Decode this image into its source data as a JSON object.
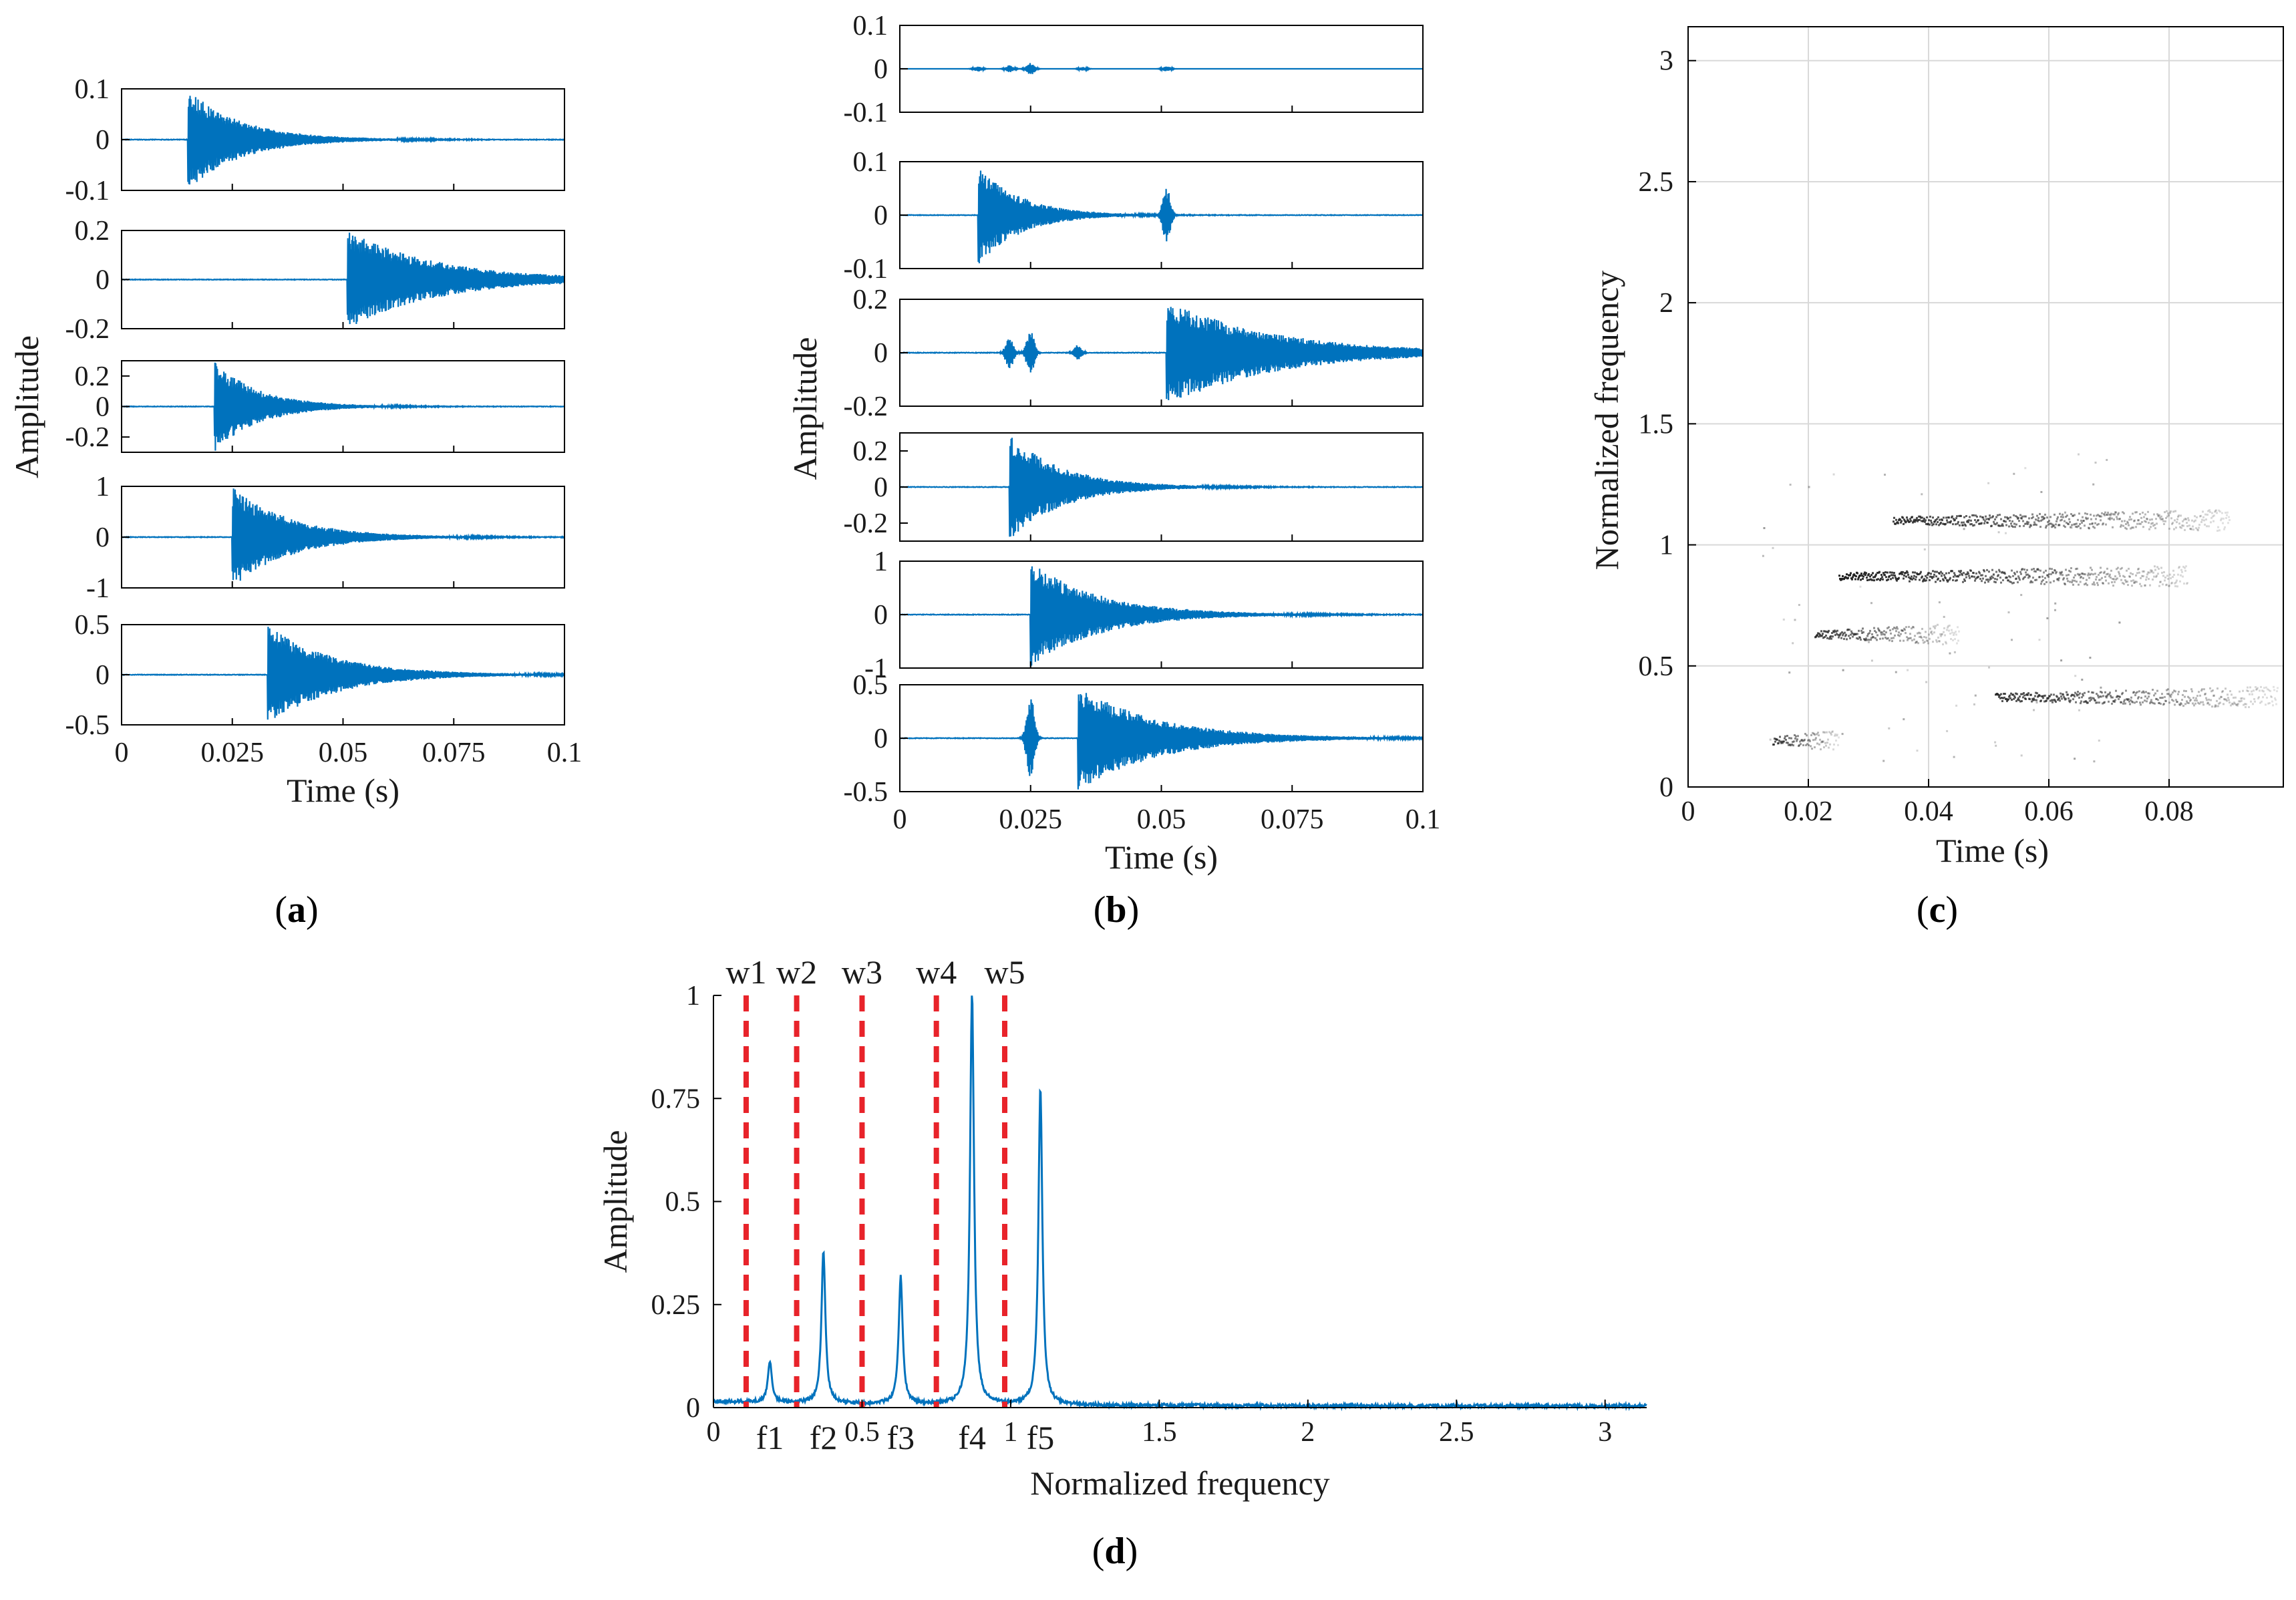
{
  "colors": {
    "signal": "#0072BD",
    "marker": "#E8232A",
    "scatter": "#222222",
    "grid": "#d9d9d9",
    "axis": "#000000"
  },
  "panels": {
    "a": {
      "open": "(",
      "letter": "a",
      "close": ")"
    },
    "b": {
      "open": "(",
      "letter": "b",
      "close": ")"
    },
    "c": {
      "open": "(",
      "letter": "c",
      "close": ")"
    },
    "d": {
      "open": "(",
      "letter": "d",
      "close": ")"
    }
  },
  "chart_data": [
    {
      "id": "a",
      "type": "line",
      "title": "",
      "xlabel": "Time (s)",
      "ylabel": "Amplitude",
      "xlim": [
        0,
        0.1
      ],
      "xticks": [
        0,
        0.025,
        0.05,
        0.075,
        0.1
      ],
      "xtick_labels": [
        "0",
        "0.025",
        "0.05",
        "0.075",
        "0.1"
      ],
      "subplots": [
        {
          "ylim": [
            -0.1,
            0.1
          ],
          "yticks": [
            -0.1,
            0,
            0.1
          ],
          "ytick_labels": [
            "-0.1",
            "0",
            "0.1"
          ],
          "onset": 0.015,
          "peak": 0.1,
          "decay": 0.012,
          "burst": []
        },
        {
          "ylim": [
            -0.2,
            0.2
          ],
          "yticks": [
            -0.2,
            0,
            0.2
          ],
          "ytick_labels": [
            "-0.2",
            "0",
            "0.2"
          ],
          "onset": 0.051,
          "peak": 0.2,
          "decay": 0.02,
          "burst": []
        },
        {
          "ylim": [
            -0.3,
            0.3
          ],
          "yticks": [
            -0.2,
            0,
            0.2
          ],
          "ytick_labels": [
            "-0.2",
            "0",
            "0.2"
          ],
          "onset": 0.021,
          "peak": 0.3,
          "decay": 0.01,
          "burst": []
        },
        {
          "ylim": [
            -1,
            1
          ],
          "yticks": [
            -1,
            0,
            1
          ],
          "ytick_labels": [
            "-1",
            "0",
            "1"
          ],
          "onset": 0.025,
          "peak": 1.0,
          "decay": 0.013,
          "burst": []
        },
        {
          "ylim": [
            -0.5,
            0.5
          ],
          "yticks": [
            -0.5,
            0,
            0.5
          ],
          "ytick_labels": [
            "-0.5",
            "0",
            "0.5"
          ],
          "onset": 0.033,
          "peak": 0.5,
          "decay": 0.015,
          "burst": []
        }
      ]
    },
    {
      "id": "b",
      "type": "line",
      "title": "",
      "xlabel": "Time (s)",
      "ylabel": "Amplitude",
      "xlim": [
        0,
        0.1
      ],
      "xticks": [
        0,
        0.025,
        0.05,
        0.075,
        0.1
      ],
      "xtick_labels": [
        "0",
        "0.025",
        "0.05",
        "0.075",
        "0.1"
      ],
      "subplots": [
        {
          "ylim": [
            -0.1,
            0.1
          ],
          "yticks": [
            -0.1,
            0,
            0.1
          ],
          "ytick_labels": [
            "-0.1",
            "0",
            "0.1"
          ],
          "onset": null,
          "peak": 0,
          "decay": 0.01,
          "burst": [
            [
              0.015,
              0.006
            ],
            [
              0.021,
              0.008
            ],
            [
              0.025,
              0.014
            ],
            [
              0.035,
              0.004
            ],
            [
              0.051,
              0.006
            ]
          ]
        },
        {
          "ylim": [
            -0.1,
            0.1
          ],
          "yticks": [
            -0.1,
            0,
            0.1
          ],
          "ytick_labels": [
            "-0.1",
            "0",
            "0.1"
          ],
          "onset": 0.015,
          "peak": 0.095,
          "decay": 0.008,
          "burst": [
            [
              0.051,
              0.05
            ]
          ]
        },
        {
          "ylim": [
            -0.2,
            0.2
          ],
          "yticks": [
            -0.2,
            0,
            0.2
          ],
          "ytick_labels": [
            "-0.2",
            "0",
            "0.2"
          ],
          "onset": 0.051,
          "peak": 0.2,
          "decay": 0.02,
          "burst": [
            [
              0.021,
              0.06
            ],
            [
              0.025,
              0.08
            ],
            [
              0.034,
              0.03
            ]
          ]
        },
        {
          "ylim": [
            -0.3,
            0.3
          ],
          "yticks": [
            -0.2,
            0,
            0.2
          ],
          "ytick_labels": [
            "-0.2",
            "0",
            "0.2"
          ],
          "onset": 0.021,
          "peak": 0.3,
          "decay": 0.01,
          "burst": []
        },
        {
          "ylim": [
            -1,
            1
          ],
          "yticks": [
            -1,
            0,
            1
          ],
          "ytick_labels": [
            "-1",
            "0",
            "1"
          ],
          "onset": 0.025,
          "peak": 1.0,
          "decay": 0.013,
          "burst": []
        },
        {
          "ylim": [
            -0.5,
            0.5
          ],
          "yticks": [
            -0.5,
            0,
            0.5
          ],
          "ytick_labels": [
            "-0.5",
            "0",
            "0.5"
          ],
          "onset": 0.034,
          "peak": 0.5,
          "decay": 0.015,
          "burst": [
            [
              0.025,
              0.4
            ]
          ]
        }
      ]
    },
    {
      "id": "c",
      "type": "scatter",
      "title": "",
      "xlabel": "Time (s)",
      "ylabel": "Normalized frequency",
      "xlim": [
        0,
        0.099
      ],
      "ylim": [
        0,
        3.14
      ],
      "grid": true,
      "xticks": [
        0,
        0.02,
        0.04,
        0.06,
        0.08
      ],
      "xtick_labels": [
        "0",
        "0.02",
        "0.04",
        "0.06",
        "0.08"
      ],
      "yticks": [
        0,
        0.5,
        1,
        1.5,
        2,
        2.5,
        3
      ],
      "ytick_labels": [
        "0",
        "0.5",
        "1",
        "1.5",
        "2",
        "2.5",
        "3"
      ],
      "tracks": [
        {
          "t_start": 0.014,
          "t_end": 0.025,
          "freq": 0.19,
          "intensity": 0.75
        },
        {
          "t_start": 0.021,
          "t_end": 0.045,
          "freq": 0.63,
          "intensity": 0.8
        },
        {
          "t_start": 0.025,
          "t_end": 0.083,
          "freq": 0.87,
          "intensity": 1.0
        },
        {
          "t_start": 0.034,
          "t_end": 0.09,
          "freq": 1.1,
          "intensity": 0.85
        },
        {
          "t_start": 0.051,
          "t_end": 0.098,
          "freq": 0.37,
          "intensity": 0.8
        }
      ]
    },
    {
      "id": "d",
      "type": "line",
      "title": "",
      "xlabel": "Normalized frequency",
      "ylabel": "Amplitude",
      "xlim": [
        0,
        3.14
      ],
      "ylim": [
        0,
        1
      ],
      "xticks": [
        0,
        0.5,
        1,
        1.5,
        2,
        2.5,
        3
      ],
      "xtick_labels": [
        "0",
        "0.5",
        "1",
        "1.5",
        "2",
        "2.5",
        "3"
      ],
      "yticks": [
        0,
        0.25,
        0.5,
        0.75,
        1
      ],
      "ytick_labels": [
        "0",
        "0.25",
        "0.5",
        "0.75",
        "1"
      ],
      "peaks": [
        {
          "label": "f1",
          "x": 0.19,
          "y": 0.1
        },
        {
          "label": "f2",
          "x": 0.37,
          "y": 0.37
        },
        {
          "label": "f3",
          "x": 0.63,
          "y": 0.31
        },
        {
          "label": "f4",
          "x": 0.87,
          "y": 1.0
        },
        {
          "label": "f5",
          "x": 1.1,
          "y": 0.77
        }
      ],
      "boundaries": [
        {
          "label": "w1",
          "x": 0.11
        },
        {
          "label": "w2",
          "x": 0.28
        },
        {
          "label": "w3",
          "x": 0.5
        },
        {
          "label": "w4",
          "x": 0.75
        },
        {
          "label": "w5",
          "x": 0.98
        }
      ]
    }
  ]
}
